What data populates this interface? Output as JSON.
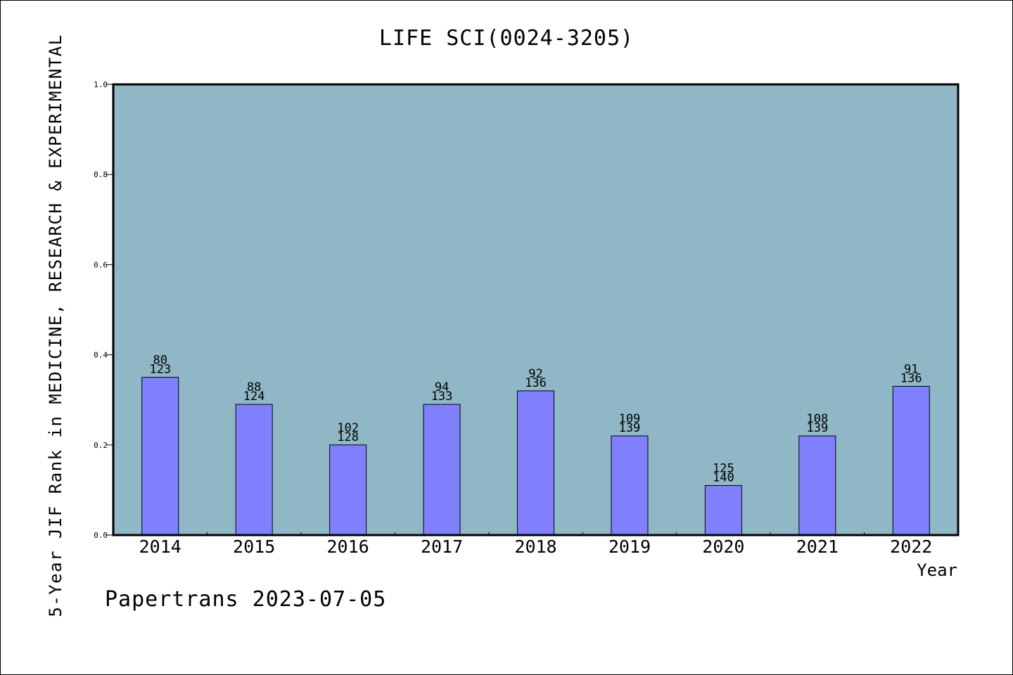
{
  "chart_data": {
    "type": "bar",
    "title": "LIFE SCI(0024-3205)",
    "xlabel": "Year",
    "ylabel": "5-Year JIF Rank in MEDICINE, RESEARCH & EXPERIMENTAL",
    "categories": [
      "2014",
      "2015",
      "2016",
      "2017",
      "2018",
      "2019",
      "2020",
      "2021",
      "2022"
    ],
    "values": [
      0.35,
      0.29,
      0.2,
      0.29,
      0.32,
      0.22,
      0.11,
      0.22,
      0.33
    ],
    "rank_labels": [
      "80",
      "88",
      "102",
      "94",
      "92",
      "109",
      "125",
      "108",
      "91"
    ],
    "total_labels": [
      "123",
      "124",
      "128",
      "133",
      "136",
      "139",
      "140",
      "139",
      "136"
    ],
    "ylim": [
      0.0,
      1.0
    ],
    "yticks": [
      "0.0",
      "0.2",
      "0.4",
      "0.6",
      "0.8",
      "1.0"
    ],
    "grid": false,
    "colors": {
      "plot_background": "#8fb7c5",
      "bar_fill": "#8080ff",
      "bar_stroke": "#000000"
    }
  },
  "footer": {
    "stamp": "Papertrans 2023-07-05"
  }
}
